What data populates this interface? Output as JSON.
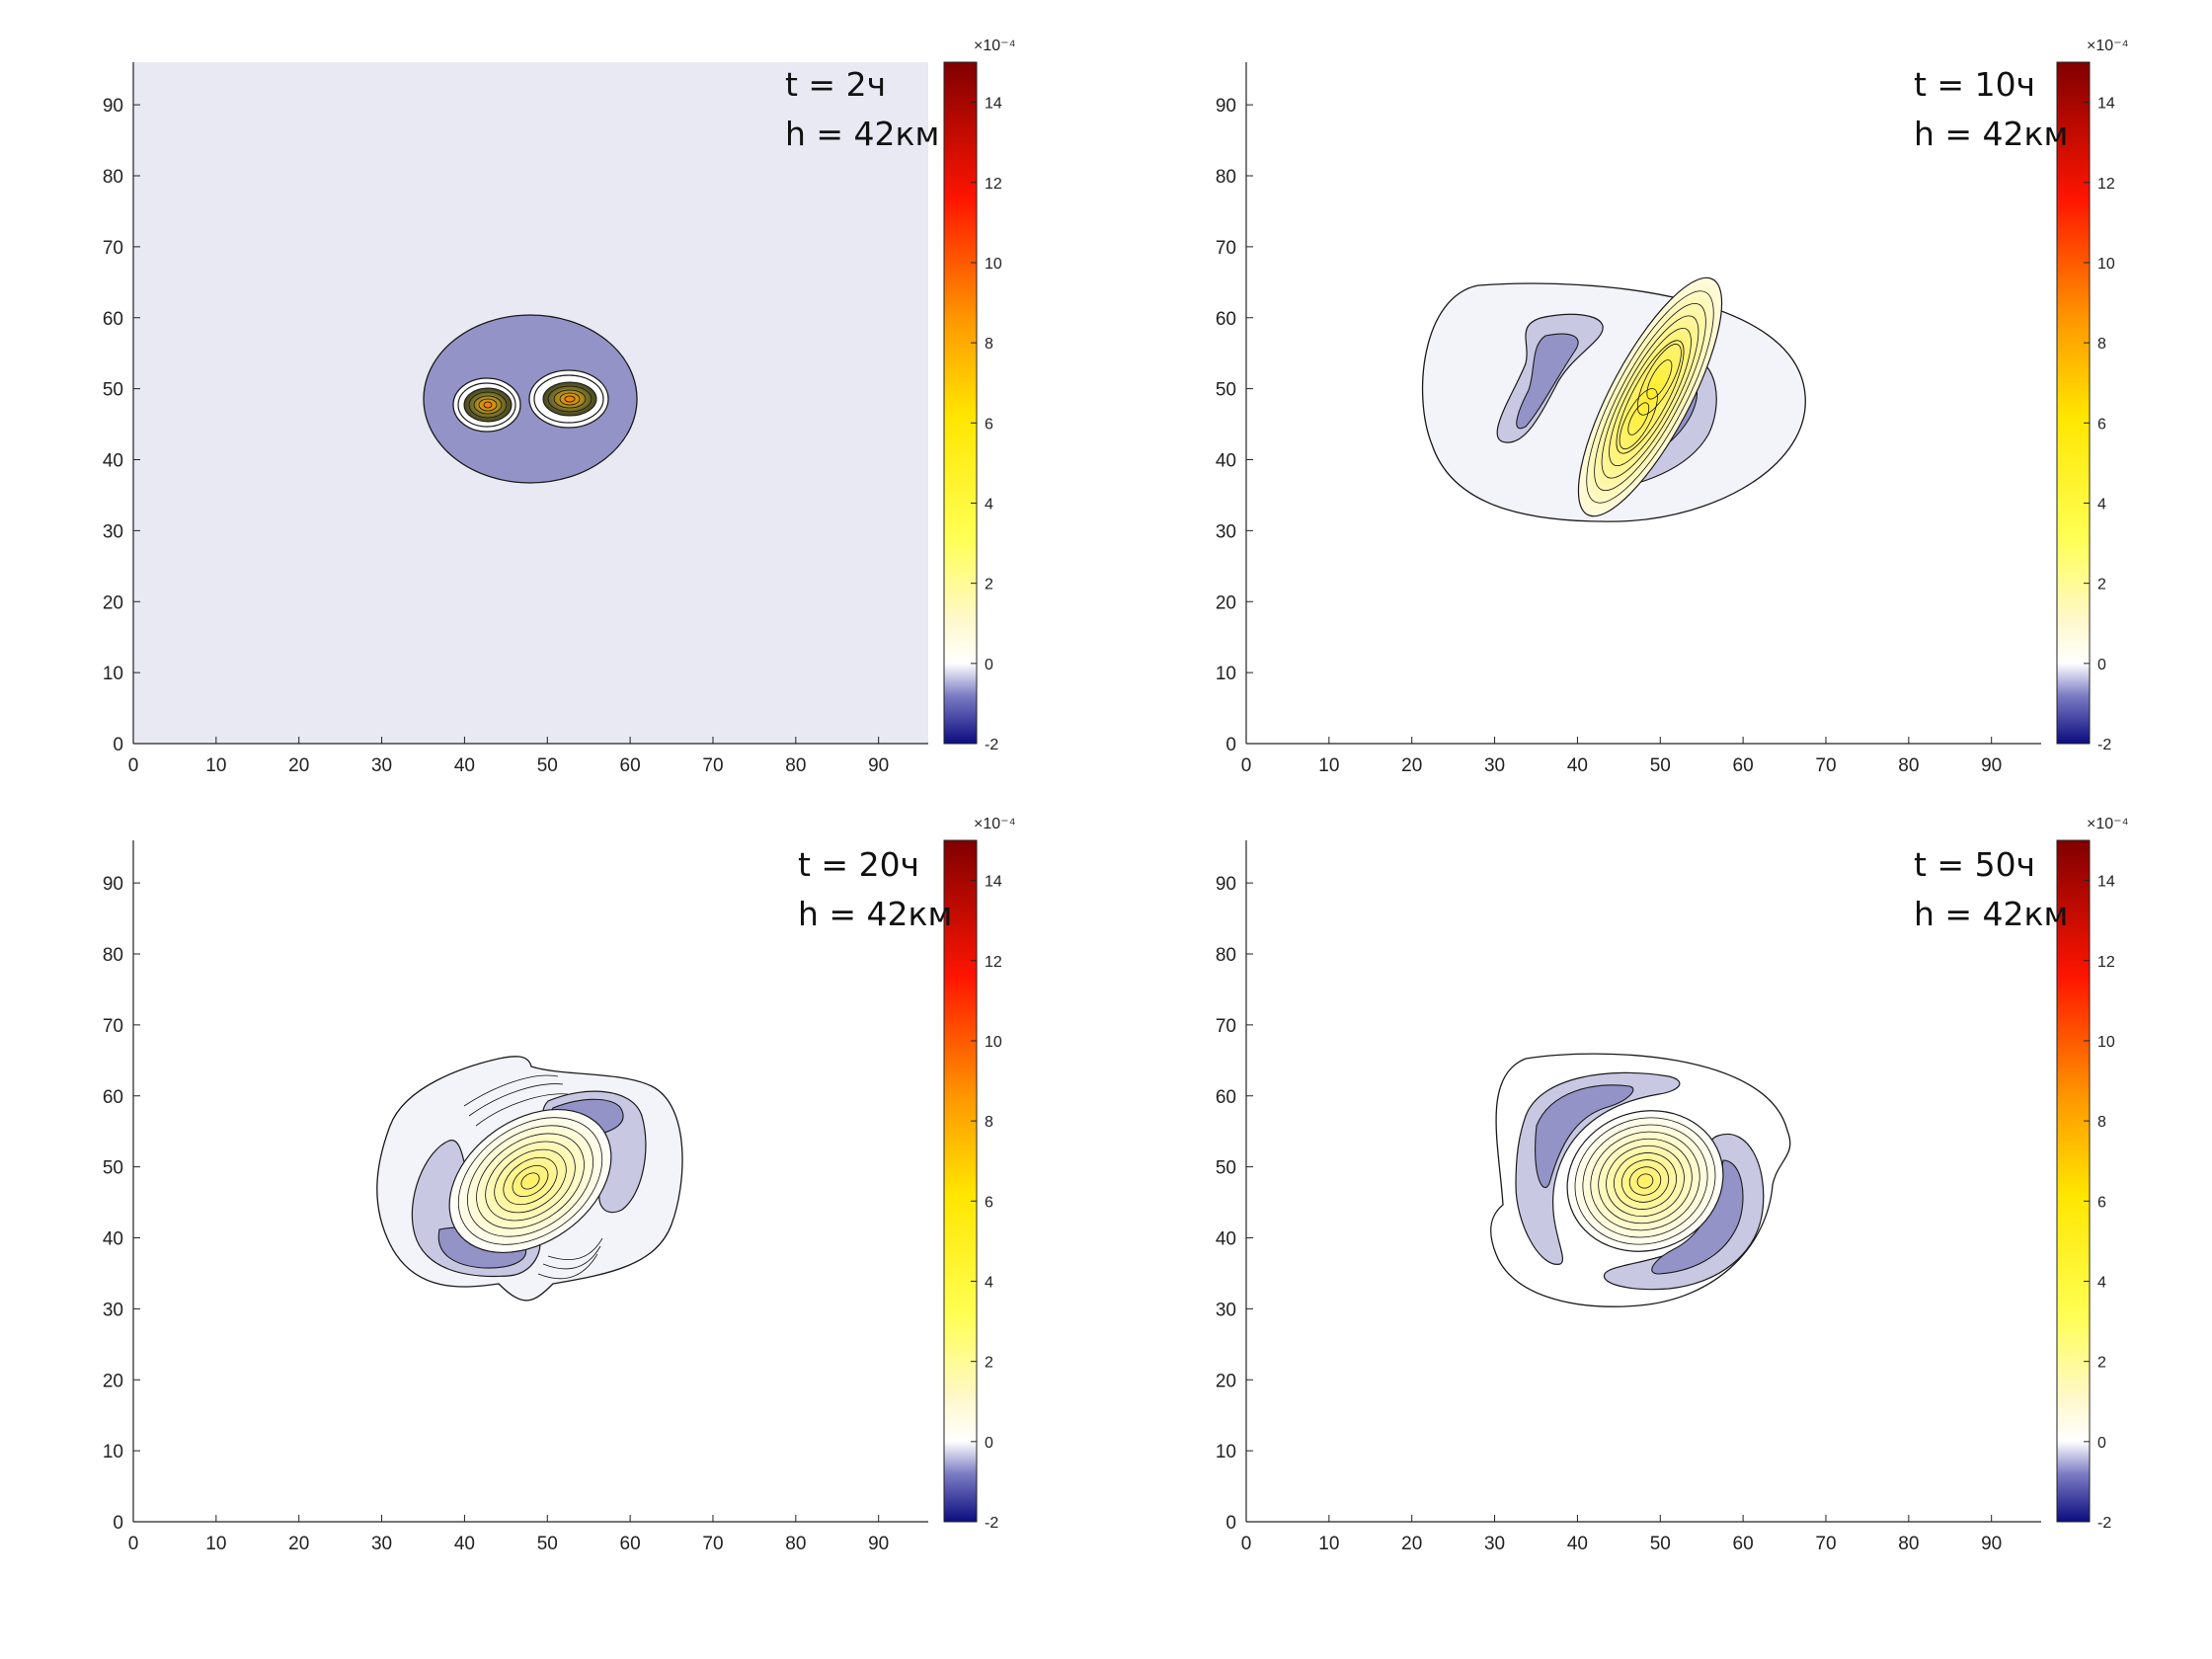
{
  "chart_data": [
    {
      "type": "heatmap",
      "title": "",
      "xlabel": "",
      "ylabel": "",
      "xlim": [
        0,
        96
      ],
      "ylim": [
        0,
        96
      ],
      "xticks": [
        0,
        10,
        20,
        30,
        40,
        50,
        60,
        70,
        80,
        90
      ],
      "yticks": [
        0,
        10,
        20,
        30,
        40,
        50,
        60,
        70,
        80,
        90
      ],
      "annotation": [
        "t = 2ч",
        "h = 42км"
      ],
      "colorbar": {
        "range": [
          -2,
          15
        ],
        "ticks": [
          -2,
          0,
          2,
          4,
          6,
          8,
          10,
          12,
          14
        ],
        "exponent": "×10⁻⁴"
      },
      "background_value": -0.3,
      "features": [
        {
          "kind": "negative_region",
          "cx": 48,
          "cy": 48,
          "rx": 12.8,
          "ry": 11.5,
          "value": -0.8
        },
        {
          "kind": "positive_core",
          "cx": 43,
          "cy": 48,
          "value": 10
        },
        {
          "kind": "positive_core",
          "cx": 52.5,
          "cy": 49,
          "value": 10
        }
      ]
    },
    {
      "type": "heatmap",
      "title": "",
      "xlabel": "",
      "ylabel": "",
      "xlim": [
        0,
        96
      ],
      "ylim": [
        0,
        96
      ],
      "xticks": [
        0,
        10,
        20,
        30,
        40,
        50,
        60,
        70,
        80,
        90
      ],
      "yticks": [
        0,
        10,
        20,
        30,
        40,
        50,
        60,
        70,
        80,
        90
      ],
      "annotation": [
        "t = 10ч",
        "h = 42км"
      ],
      "colorbar": {
        "range": [
          -2,
          15
        ],
        "ticks": [
          -2,
          0,
          2,
          4,
          6,
          8,
          10,
          12,
          14
        ],
        "exponent": "×10⁻⁴"
      },
      "background_value": 0,
      "features": [
        {
          "kind": "outer_contour",
          "cx": 48.5,
          "cy": 48.5,
          "rx": 19.5,
          "ry": 16.5,
          "value": -0.1
        },
        {
          "kind": "negative_lobe",
          "cx": 41.5,
          "cy": 46.5,
          "value": -0.6
        },
        {
          "kind": "negative_lobe",
          "cx": 55,
          "cy": 49.5,
          "value": -0.6
        },
        {
          "kind": "positive_filament",
          "cx": 48,
          "cy": 48.5,
          "angle_deg": 62,
          "length": 20,
          "value": 5.5
        }
      ]
    },
    {
      "type": "heatmap",
      "title": "",
      "xlabel": "",
      "ylabel": "",
      "xlim": [
        0,
        96
      ],
      "ylim": [
        0,
        96
      ],
      "xticks": [
        0,
        10,
        20,
        30,
        40,
        50,
        60,
        70,
        80,
        90
      ],
      "yticks": [
        0,
        10,
        20,
        30,
        40,
        50,
        60,
        70,
        80,
        90
      ],
      "annotation": [
        "t = 20ч",
        "h = 42км"
      ],
      "colorbar": {
        "range": [
          -2,
          15
        ],
        "ticks": [
          -2,
          0,
          2,
          4,
          6,
          8,
          10,
          12,
          14
        ],
        "exponent": "×10⁻⁴"
      },
      "background_value": 0,
      "features": [
        {
          "kind": "outer_contour",
          "cx": 48,
          "cy": 48,
          "rx": 18,
          "ry": 16,
          "value": -0.1
        },
        {
          "kind": "negative_lobe",
          "cx": 41,
          "cy": 41,
          "value": -0.7
        },
        {
          "kind": "negative_lobe",
          "cx": 54,
          "cy": 55,
          "value": -0.7
        },
        {
          "kind": "positive_core",
          "cx": 48,
          "cy": 48,
          "value": 5.5
        }
      ]
    },
    {
      "type": "heatmap",
      "title": "",
      "xlabel": "",
      "ylabel": "",
      "xlim": [
        0,
        96
      ],
      "ylim": [
        0,
        96
      ],
      "xticks": [
        0,
        10,
        20,
        30,
        40,
        50,
        60,
        70,
        80,
        90
      ],
      "yticks": [
        0,
        10,
        20,
        30,
        40,
        50,
        60,
        70,
        80,
        90
      ],
      "annotation": [
        "t = 50ч",
        "h = 42км"
      ],
      "colorbar": {
        "range": [
          -2,
          15
        ],
        "ticks": [
          -2,
          0,
          2,
          4,
          6,
          8,
          10,
          12,
          14
        ],
        "exponent": "×10⁻⁴"
      },
      "background_value": 0,
      "features": [
        {
          "kind": "outer_contour",
          "cx": 48,
          "cy": 48,
          "rx": 18,
          "ry": 15.5,
          "value": -0.1
        },
        {
          "kind": "negative_lobe",
          "cx": 41,
          "cy": 53,
          "value": -0.7
        },
        {
          "kind": "negative_lobe",
          "cx": 55,
          "cy": 43,
          "value": -0.7
        },
        {
          "kind": "positive_core",
          "cx": 48,
          "cy": 48,
          "value": 4
        }
      ]
    }
  ]
}
